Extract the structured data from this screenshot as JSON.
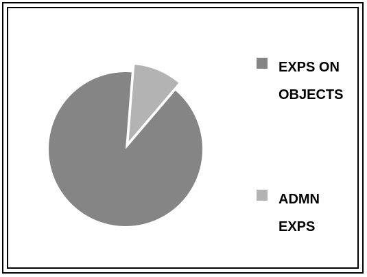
{
  "chart_data": {
    "type": "pie",
    "title": "",
    "categories": [
      "EXPS ON OBJECTS",
      "ADMN EXPS"
    ],
    "values": [
      90,
      10
    ],
    "colors": [
      "#858585",
      "#b3b3b3"
    ],
    "exploded": [
      false,
      true
    ],
    "legend_position": "right"
  },
  "legend": {
    "items": [
      {
        "label_line1": "EXPS ON",
        "label_line2": "OBJECTS",
        "color": "#858585"
      },
      {
        "label_line1": "ADMN",
        "label_line2": "EXPS",
        "color": "#b3b3b3"
      }
    ]
  }
}
